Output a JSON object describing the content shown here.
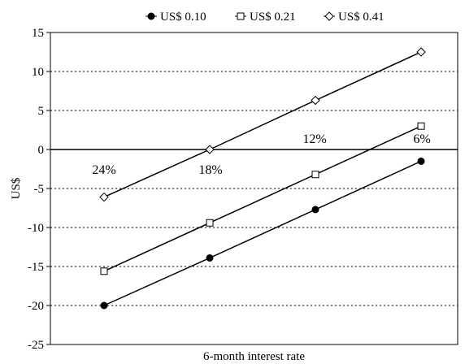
{
  "chart_data": {
    "type": "line",
    "xlabel": "6-month interest rate",
    "ylabel": "US$",
    "ylim": [
      -25,
      15
    ],
    "yticks": [
      15,
      10,
      5,
      0,
      -5,
      -10,
      -15,
      -20,
      -25
    ],
    "ytick_labels": [
      "15",
      "10",
      "5",
      "0",
      "-5",
      "-10",
      "-15",
      "-20",
      "-25"
    ],
    "grid": "horizontal-dotted",
    "legend_position": "top",
    "categories": [
      "24%",
      "18%",
      "12%",
      "6%"
    ],
    "series": [
      {
        "name": "US$ 0.10",
        "marker": "filled-circle",
        "values": [
          -20.0,
          -13.9,
          -7.7,
          -1.5
        ]
      },
      {
        "name": "US$ 0.21",
        "marker": "open-square",
        "values": [
          -15.6,
          -9.4,
          -3.2,
          3.0
        ]
      },
      {
        "name": "US$ 0.41",
        "marker": "open-diamond",
        "values": [
          -6.1,
          0.0,
          6.3,
          12.5
        ]
      }
    ]
  }
}
